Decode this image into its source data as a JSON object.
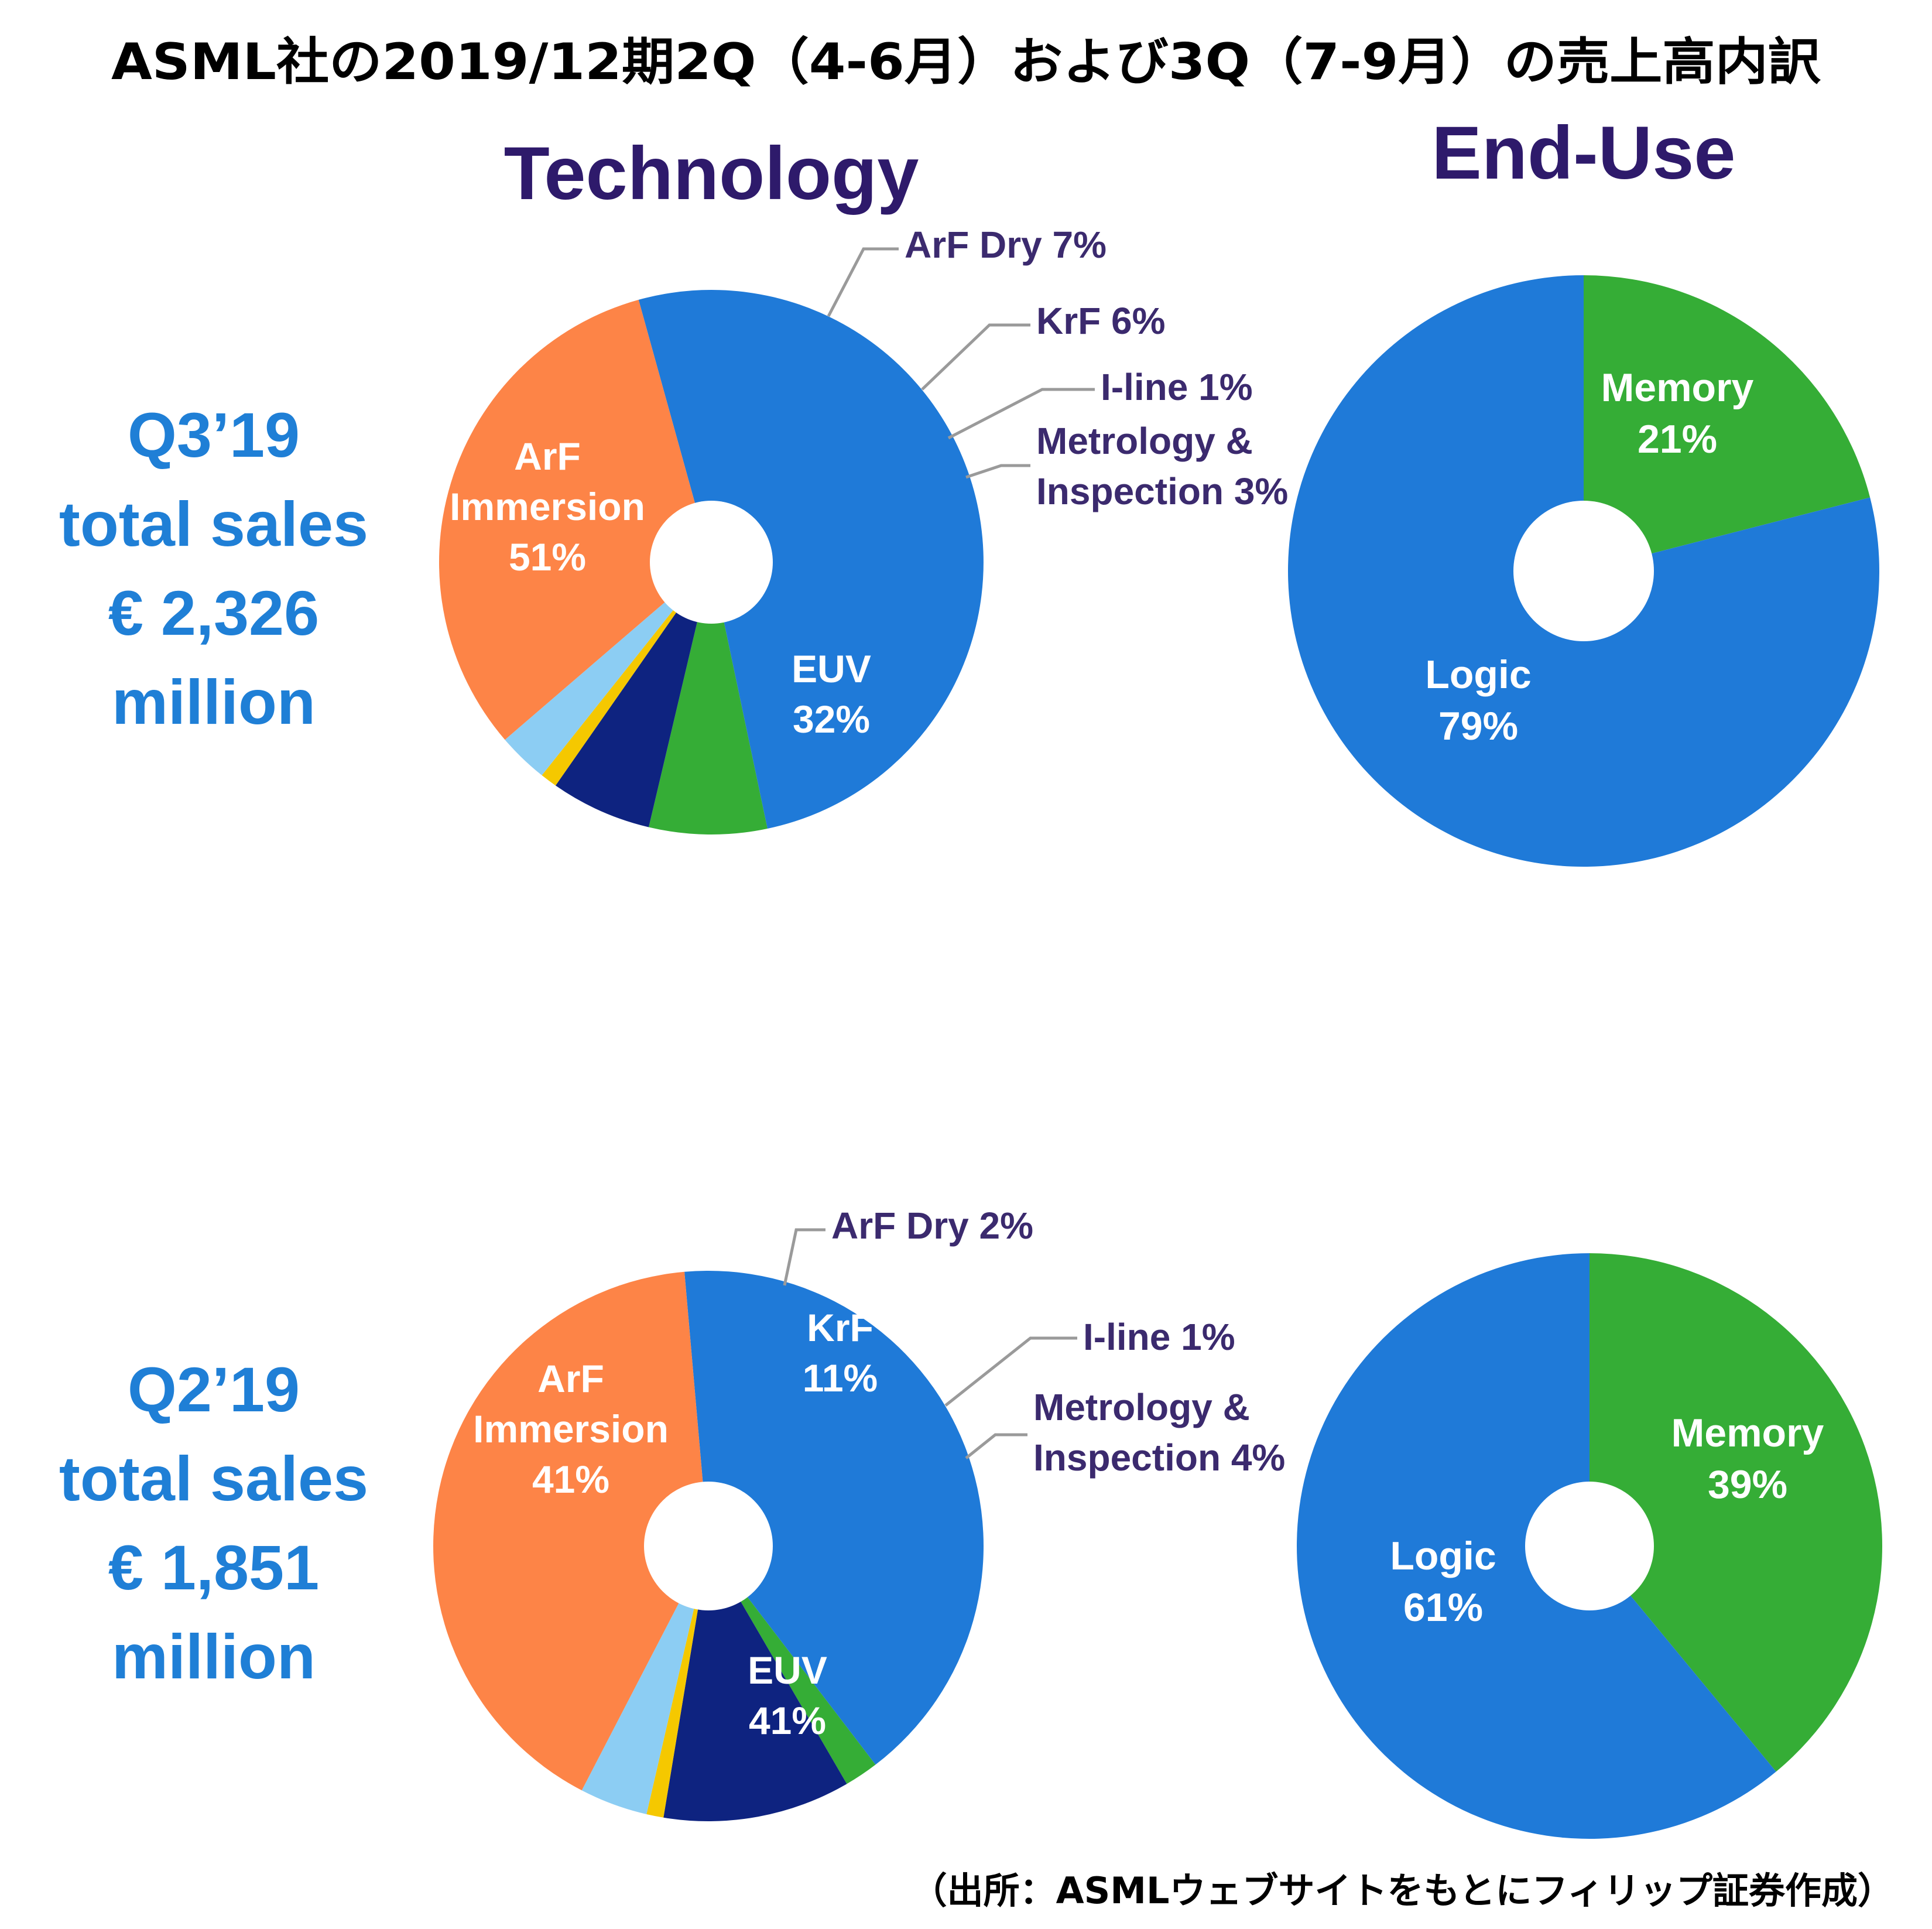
{
  "header": {
    "title": "ASML社の2019/12期2Q（4-6月）および3Q（7-9月）の売上高内訳",
    "technology_heading": "Technology",
    "enduse_heading": "End-Use"
  },
  "colors": {
    "arf_immersion": "#1f7ad8",
    "arf_dry": "#35ad36",
    "krf": "#0e2380",
    "i_line": "#f5c800",
    "metrology": "#8ccdf3",
    "euv": "#fd8447",
    "logic": "#1f7ad8",
    "memory": "#35ad36"
  },
  "rows": [
    {
      "period": "Q3’19",
      "sales_lines": [
        "Q3’19",
        "total sales",
        "€ 2,326",
        "million"
      ]
    },
    {
      "period": "Q2’19",
      "sales_lines": [
        "Q2’19",
        "total sales",
        "€ 1,851",
        "million"
      ]
    }
  ],
  "chart_data": [
    {
      "type": "pie",
      "group": "Technology",
      "period": "Q3’19",
      "series": [
        {
          "name": "ArF Immersion",
          "value": 51,
          "label_lines": [
            "ArF",
            "Immersion",
            "51%"
          ]
        },
        {
          "name": "ArF Dry",
          "value": 7,
          "label_lines": [
            "ArF Dry 7%"
          ]
        },
        {
          "name": "KrF",
          "value": 6,
          "label_lines": [
            "KrF 6%"
          ]
        },
        {
          "name": "I-line",
          "value": 1,
          "label_lines": [
            "I-line 1%"
          ]
        },
        {
          "name": "Metrology & Inspection",
          "value": 3,
          "label_lines": [
            "Metrology &",
            "Inspection 3%"
          ]
        },
        {
          "name": "EUV",
          "value": 32,
          "label_lines": [
            "EUV",
            "32%"
          ]
        }
      ]
    },
    {
      "type": "pie",
      "group": "End-Use",
      "period": "Q3’19",
      "series": [
        {
          "name": "Memory",
          "value": 21,
          "label_lines": [
            "Memory",
            "21%"
          ]
        },
        {
          "name": "Logic",
          "value": 79,
          "label_lines": [
            "Logic",
            "79%"
          ]
        }
      ]
    },
    {
      "type": "pie",
      "group": "Technology",
      "period": "Q2’19",
      "series": [
        {
          "name": "ArF Immersion",
          "value": 41,
          "label_lines": [
            "ArF",
            "Immersion",
            "41%"
          ]
        },
        {
          "name": "ArF Dry",
          "value": 2,
          "label_lines": [
            "ArF Dry 2%"
          ]
        },
        {
          "name": "KrF",
          "value": 11,
          "label_lines": [
            "KrF",
            "11%"
          ]
        },
        {
          "name": "I-line",
          "value": 1,
          "label_lines": [
            "I-line 1%"
          ]
        },
        {
          "name": "Metrology & Inspection",
          "value": 4,
          "label_lines": [
            "Metrology &",
            "Inspection 4%"
          ]
        },
        {
          "name": "EUV",
          "value": 41,
          "label_lines": [
            "EUV",
            "41%"
          ]
        }
      ]
    },
    {
      "type": "pie",
      "group": "End-Use",
      "period": "Q2’19",
      "series": [
        {
          "name": "Memory",
          "value": 39,
          "label_lines": [
            "Memory",
            "39%"
          ]
        },
        {
          "name": "Logic",
          "value": 61,
          "label_lines": [
            "Logic",
            "61%"
          ]
        }
      ]
    }
  ],
  "footer": {
    "source": "（出所：ASMLウェブサイトをもとにフィリップ証券作成）"
  }
}
